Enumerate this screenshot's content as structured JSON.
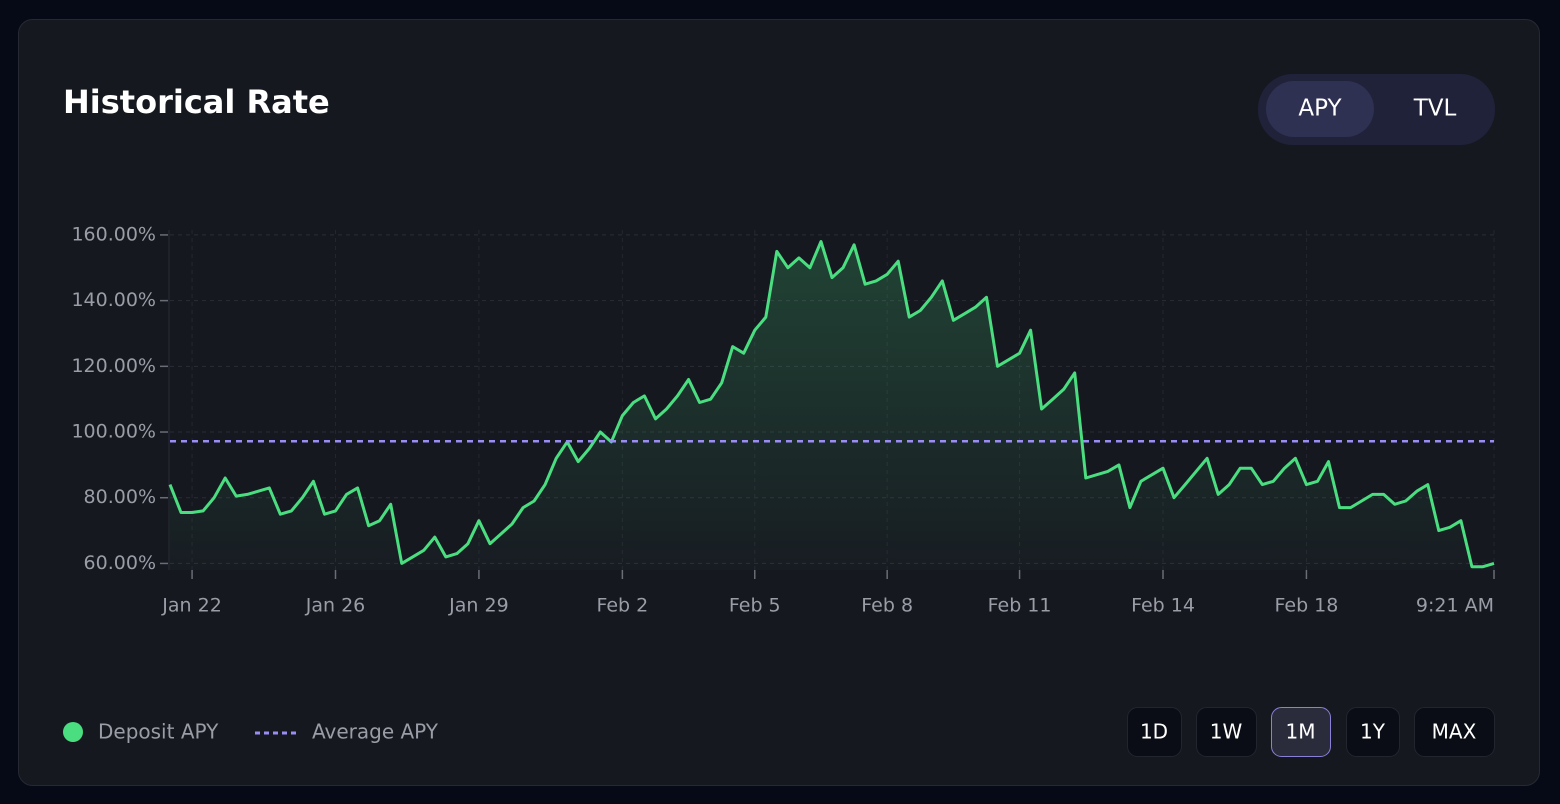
{
  "chart_data": {
    "type": "line",
    "title": "Historical Rate",
    "tabs": [
      "APY",
      "TVL"
    ],
    "active_tab": 0,
    "ranges": [
      "1D",
      "1W",
      "1M",
      "1Y",
      "MAX"
    ],
    "active_range": 2,
    "categories": [
      null,
      null,
      "Jan 22",
      null,
      null,
      null,
      null,
      null,
      null,
      null,
      null,
      null,
      null,
      null,
      null,
      "Jan 26",
      null,
      null,
      null,
      null,
      null,
      null,
      null,
      null,
      null,
      null,
      null,
      null,
      "Jan 29",
      null,
      null,
      null,
      null,
      null,
      null,
      null,
      null,
      null,
      null,
      null,
      null,
      "Feb 2",
      null,
      null,
      null,
      null,
      null,
      null,
      null,
      null,
      null,
      null,
      null,
      "Feb 5",
      null,
      null,
      null,
      null,
      null,
      null,
      null,
      null,
      null,
      null,
      null,
      "Feb 8",
      null,
      null,
      null,
      null,
      null,
      null,
      null,
      null,
      null,
      null,
      null,
      "Feb 11",
      null,
      null,
      null,
      null,
      null,
      null,
      null,
      null,
      null,
      null,
      null,
      null,
      "Feb 14",
      null,
      null,
      null,
      null,
      null,
      null,
      null,
      null,
      null,
      null,
      null,
      null,
      "Feb 18",
      null,
      null,
      null,
      null,
      null,
      null,
      null,
      null,
      null,
      null,
      null,
      null,
      null,
      null,
      null,
      null,
      "9:21 AM"
    ],
    "series": [
      {
        "name": "Deposit APY",
        "color": "#4ade80",
        "values": [
          84,
          75.5,
          75.5,
          76,
          80,
          86,
          80.5,
          81,
          82,
          83,
          75,
          76,
          80,
          85,
          75,
          76,
          81,
          83,
          71.5,
          73,
          78,
          60,
          62,
          64,
          68,
          62,
          63,
          66,
          73,
          66,
          69,
          72,
          77,
          79,
          84,
          92,
          97,
          91,
          95,
          100,
          97,
          105,
          109,
          111,
          104,
          107,
          111,
          116,
          109,
          110,
          115,
          126,
          124,
          131,
          135,
          155,
          150,
          153,
          150,
          158,
          147,
          150,
          157,
          145,
          146,
          148,
          152,
          135,
          137,
          141,
          146,
          134,
          136,
          138,
          141,
          120,
          122,
          124,
          131,
          107,
          110,
          113,
          118,
          86,
          87,
          88,
          90,
          77,
          85,
          87,
          89,
          80,
          84,
          88,
          92,
          81,
          84,
          89,
          89,
          84,
          85,
          89,
          92,
          84,
          85,
          91,
          77,
          77,
          79,
          81,
          81,
          78,
          79,
          82,
          84,
          70,
          71,
          73,
          59,
          59,
          60
        ]
      }
    ],
    "average": {
      "name": "Average APY",
      "value": 97.2,
      "color": "#9b8cf5"
    },
    "ylim": [
      58,
      161.5
    ],
    "yticks": [
      {
        "value": 60,
        "label": "60.00%"
      },
      {
        "value": 80,
        "label": "80.00%"
      },
      {
        "value": 100,
        "label": "100.00%"
      },
      {
        "value": 120,
        "label": "120.00%"
      },
      {
        "value": 140,
        "label": "140.00%"
      },
      {
        "value": 160,
        "label": "160.00%"
      }
    ],
    "grid": true
  }
}
